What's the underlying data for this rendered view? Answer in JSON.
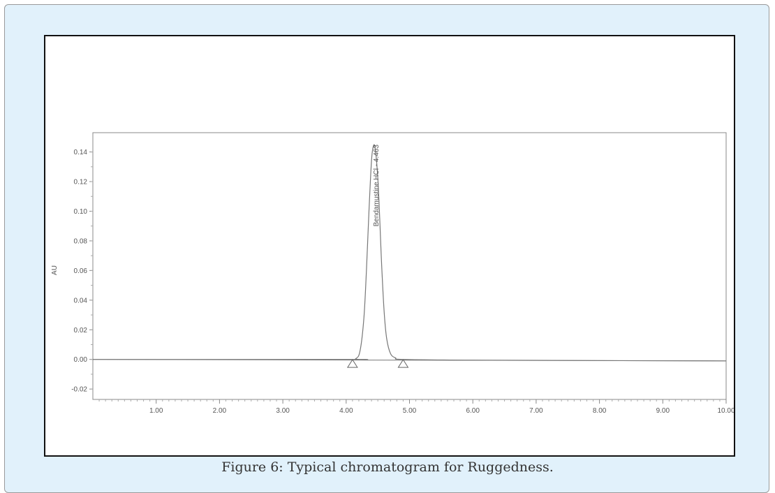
{
  "caption": "Figure 6: Typical chromatogram for Ruggedness.",
  "colors": {
    "panel": "#e1f1fb",
    "trace": "#777777",
    "frame": "#111111"
  },
  "chart_data": {
    "type": "line",
    "title": "",
    "xlabel": "",
    "ylabel": "AU",
    "xlim": [
      0,
      10.0
    ],
    "ylim": [
      -0.027,
      0.153
    ],
    "x_ticks": [
      "1.00",
      "2.00",
      "3.00",
      "4.00",
      "5.00",
      "6.00",
      "7.00",
      "8.00",
      "9.00",
      "10.00"
    ],
    "y_ticks": [
      "0.14",
      "0.12",
      "0.10",
      "0.08",
      "0.06",
      "0.04",
      "0.02",
      "0.00",
      "-0.02"
    ],
    "x_tick_values": [
      1,
      2,
      3,
      4,
      5,
      6,
      7,
      8,
      9,
      10
    ],
    "y_tick_values": [
      0.14,
      0.12,
      0.1,
      0.08,
      0.06,
      0.04,
      0.02,
      0.0,
      -0.02
    ],
    "series": [
      {
        "x": [
          0.0,
          4.0,
          4.15,
          4.22,
          4.28,
          4.32,
          4.36,
          4.4,
          4.43,
          4.46,
          4.5,
          4.53,
          4.56,
          4.6,
          4.64,
          4.7,
          4.78,
          4.9,
          6.0,
          10.0
        ],
        "y": [
          0.0,
          0.0,
          0.0005,
          0.006,
          0.028,
          0.06,
          0.1,
          0.134,
          0.144,
          0.142,
          0.122,
          0.095,
          0.064,
          0.032,
          0.014,
          0.004,
          0.001,
          0.0,
          -0.0005,
          -0.001
        ]
      }
    ],
    "peak": {
      "label": "Bendamustine HCl - 4.463",
      "x": 4.463,
      "y": 0.144
    },
    "integration_markers": [
      {
        "x": 4.1,
        "y": -0.003
      },
      {
        "x": 4.9,
        "y": -0.003
      }
    ],
    "grid": false,
    "legend": "none"
  }
}
